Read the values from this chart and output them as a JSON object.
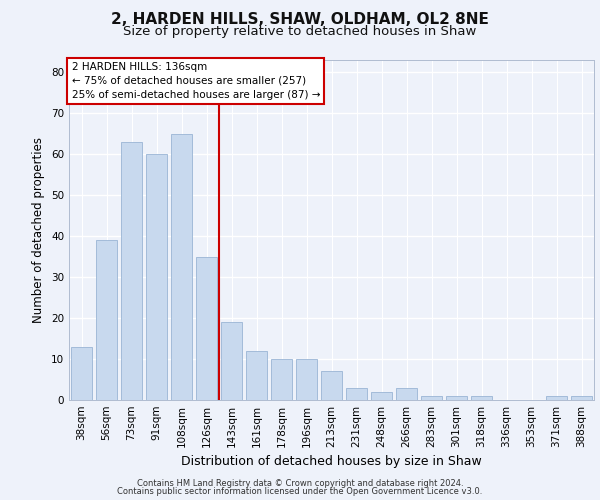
{
  "title_line1": "2, HARDEN HILLS, SHAW, OLDHAM, OL2 8NE",
  "title_line2": "Size of property relative to detached houses in Shaw",
  "xlabel": "Distribution of detached houses by size in Shaw",
  "ylabel": "Number of detached properties",
  "categories": [
    "38sqm",
    "56sqm",
    "73sqm",
    "91sqm",
    "108sqm",
    "126sqm",
    "143sqm",
    "161sqm",
    "178sqm",
    "196sqm",
    "213sqm",
    "231sqm",
    "248sqm",
    "266sqm",
    "283sqm",
    "301sqm",
    "318sqm",
    "336sqm",
    "353sqm",
    "371sqm",
    "388sqm"
  ],
  "values": [
    13,
    39,
    63,
    60,
    65,
    35,
    19,
    12,
    10,
    10,
    7,
    3,
    2,
    3,
    1,
    1,
    1,
    0,
    0,
    1,
    1
  ],
  "bar_color": "#c8d9ee",
  "bar_edge_color": "#9ab5d5",
  "vline_x_index": 5.5,
  "vline_color": "#cc0000",
  "ylim": [
    0,
    83
  ],
  "yticks": [
    0,
    10,
    20,
    30,
    40,
    50,
    60,
    70,
    80
  ],
  "annotation_box_text": "2 HARDEN HILLS: 136sqm\n← 75% of detached houses are smaller (257)\n25% of semi-detached houses are larger (87) →",
  "footer_line1": "Contains HM Land Registry data © Crown copyright and database right 2024.",
  "footer_line2": "Contains public sector information licensed under the Open Government Licence v3.0.",
  "background_color": "#eef2fa",
  "grid_color": "#ffffff",
  "title_fontsize": 11,
  "subtitle_fontsize": 9.5,
  "tick_fontsize": 7.5,
  "ylabel_fontsize": 8.5,
  "xlabel_fontsize": 9
}
